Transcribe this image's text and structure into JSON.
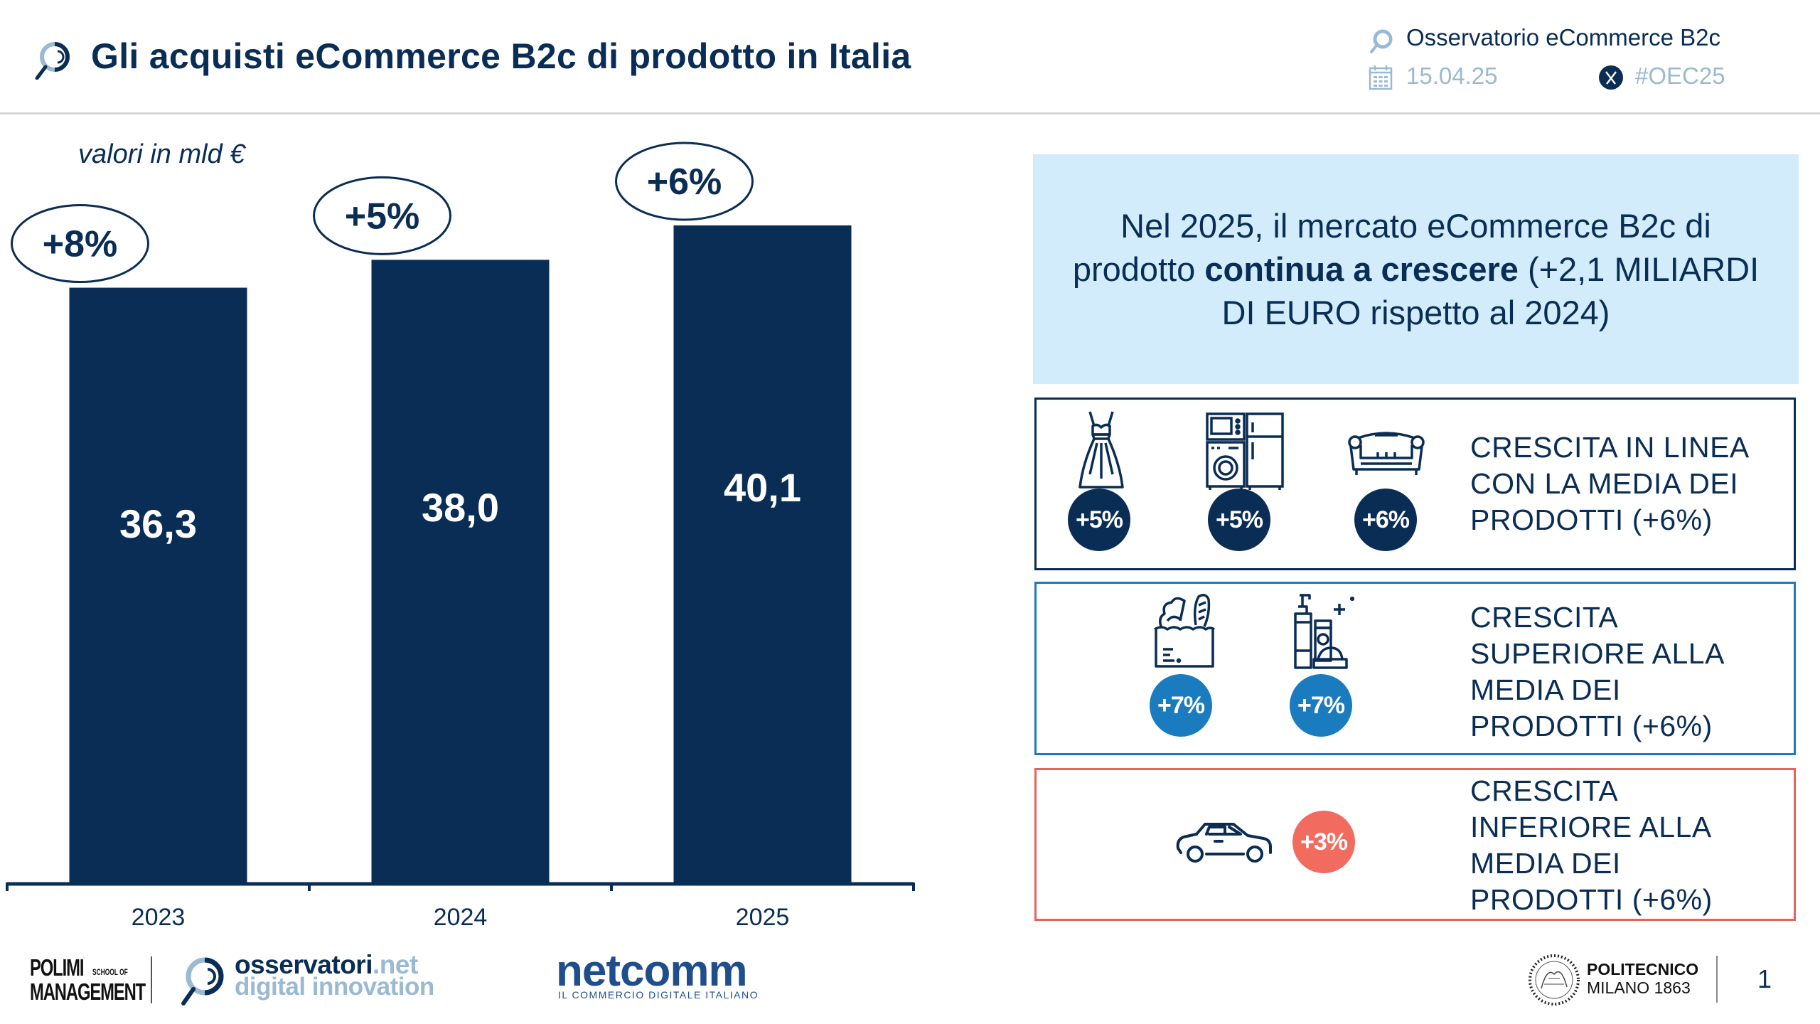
{
  "header": {
    "title": "Gli acquisti eCommerce B2c di prodotto in Italia",
    "observatory": "Osservatorio eCommerce B2c",
    "date": "15.04.25",
    "hashtag": "#OEC25"
  },
  "unit_label": "valori in mld €",
  "chart_data": {
    "type": "bar",
    "title": "Gli acquisti eCommerce B2c di prodotto in Italia",
    "xlabel": "",
    "ylabel": "valori in mld €",
    "categories": [
      "2023",
      "2024",
      "2025"
    ],
    "values": [
      36.3,
      38.0,
      40.1
    ],
    "value_labels": [
      "36,3",
      "38,0",
      "40,1"
    ],
    "growth_labels": [
      "+8%",
      "+5%",
      "+6%"
    ],
    "ylim": [
      0,
      42
    ],
    "grid": false,
    "legend": "none",
    "colors": {
      "bar": "#0a2d55"
    }
  },
  "highlight": {
    "text_before": "Nel 2025, il mercato eCommerce B2c di prodotto ",
    "text_bold": "continua a crescere",
    "text_after": " (+2,1 MILIARDI DI EURO rispetto al 2024)"
  },
  "categories": [
    {
      "text": [
        "CRESCITA IN LINEA",
        "CON LA MEDIA DEI",
        "PRODOTTI (+6%)"
      ],
      "items": [
        {
          "icon": "dress-icon",
          "badge": "+5%"
        },
        {
          "icon": "appliances-icon",
          "badge": "+5%"
        },
        {
          "icon": "sofa-icon",
          "badge": "+6%"
        }
      ],
      "color": "#0a2d55"
    },
    {
      "text": [
        "CRESCITA",
        "SUPERIORE ALLA",
        "MEDIA DEI",
        "PRODOTTI (+6%)"
      ],
      "items": [
        {
          "icon": "grocery-bag-icon",
          "badge": "+7%"
        },
        {
          "icon": "personal-care-icon",
          "badge": "+7%"
        }
      ],
      "color": "#1a7bbf"
    },
    {
      "text": [
        "CRESCITA",
        "INFERIORE ALLA",
        "MEDIA DEI",
        "PRODOTTI (+6%)"
      ],
      "items": [
        {
          "icon": "car-icon",
          "badge": "+3%"
        }
      ],
      "color": "#e8625c"
    }
  ],
  "footer": {
    "polimi_line1": "POLIMI",
    "polimi_school": "SCHOOL OF",
    "polimi_line2": "MANAGEMENT",
    "osservatori_main": "osservatori",
    "osservatori_tld": ".net",
    "osservatori_sub": "digital innovation",
    "netcomm": "netcomm",
    "netcomm_sub": "IL COMMERCIO DIGITALE ITALIANO",
    "politecnico_line1": "POLITECNICO",
    "politecnico_line2": "MILANO 1863",
    "page_number": "1"
  }
}
